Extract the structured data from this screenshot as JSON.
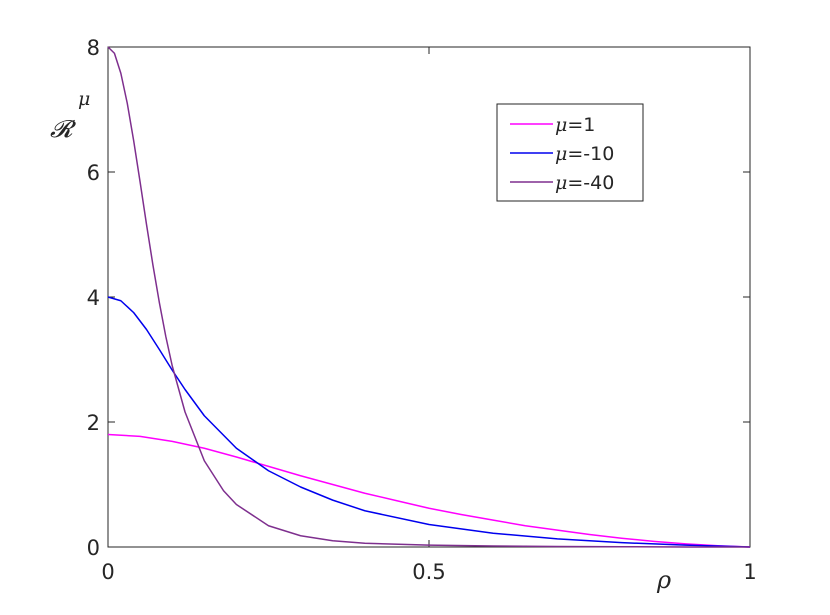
{
  "chart_data": {
    "type": "line",
    "xlabel": "ρ",
    "ylabel": "𝓡",
    "ylabel_sub": "μ",
    "xlim": [
      0,
      1
    ],
    "ylim": [
      0,
      8
    ],
    "x_ticks": [
      0,
      0.5,
      1
    ],
    "x_tick_labels": [
      "0",
      "0.5",
      "1"
    ],
    "y_ticks": [
      0,
      2,
      4,
      6,
      8
    ],
    "y_tick_labels": [
      "0",
      "2",
      "4",
      "6",
      "8"
    ],
    "grid": false,
    "legend_position": "top-right",
    "series": [
      {
        "name": "μ=1",
        "legend_prefix": "μ",
        "legend_suffix": "=1",
        "color": "#ff00ff",
        "x": [
          0,
          0.05,
          0.1,
          0.15,
          0.2,
          0.25,
          0.3,
          0.35,
          0.4,
          0.45,
          0.5,
          0.55,
          0.6,
          0.65,
          0.7,
          0.75,
          0.8,
          0.85,
          0.9,
          0.95,
          1.0
        ],
        "y": [
          1.8,
          1.77,
          1.69,
          1.58,
          1.44,
          1.29,
          1.14,
          1.0,
          0.86,
          0.74,
          0.62,
          0.52,
          0.43,
          0.34,
          0.27,
          0.2,
          0.14,
          0.09,
          0.05,
          0.02,
          0.0
        ]
      },
      {
        "name": "μ=-10",
        "legend_prefix": "μ",
        "legend_suffix": "=-10",
        "color": "#0000ee",
        "x": [
          0,
          0.02,
          0.04,
          0.06,
          0.08,
          0.1,
          0.12,
          0.15,
          0.2,
          0.25,
          0.3,
          0.35,
          0.4,
          0.5,
          0.6,
          0.7,
          0.8,
          0.9,
          1.0
        ],
        "y": [
          4.0,
          3.94,
          3.75,
          3.48,
          3.16,
          2.83,
          2.52,
          2.1,
          1.58,
          1.22,
          0.96,
          0.75,
          0.58,
          0.36,
          0.22,
          0.13,
          0.07,
          0.03,
          0.0
        ]
      },
      {
        "name": "μ=-40",
        "legend_prefix": "μ",
        "legend_suffix": "=-40",
        "color": "#7e2f8e",
        "x": [
          0,
          0.01,
          0.02,
          0.03,
          0.04,
          0.05,
          0.06,
          0.07,
          0.08,
          0.09,
          0.1,
          0.12,
          0.15,
          0.18,
          0.2,
          0.25,
          0.3,
          0.35,
          0.4,
          0.5,
          0.6,
          0.7,
          0.8,
          0.9,
          1.0
        ],
        "y": [
          8.0,
          7.9,
          7.58,
          7.1,
          6.5,
          5.84,
          5.16,
          4.51,
          3.91,
          3.37,
          2.9,
          2.16,
          1.38,
          0.9,
          0.68,
          0.34,
          0.18,
          0.1,
          0.06,
          0.03,
          0.015,
          0.008,
          0.004,
          0.001,
          0.0
        ]
      }
    ]
  }
}
